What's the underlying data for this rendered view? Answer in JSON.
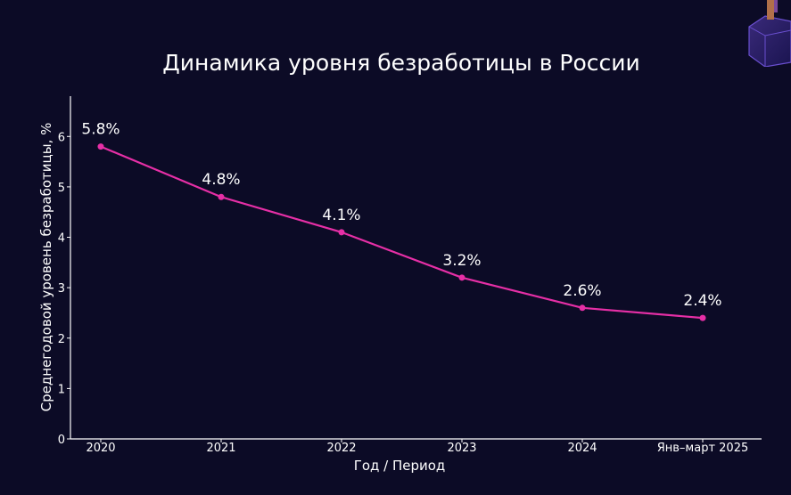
{
  "chart_data": {
    "type": "line",
    "title": "Динамика уровня безработицы в России",
    "xlabel": "Год / Период",
    "ylabel": "Среднегодовой уровень безработицы, %",
    "categories": [
      "2020",
      "2021",
      "2022",
      "2023",
      "2024",
      "Янв–март 2025"
    ],
    "series": [
      {
        "values": [
          5.8,
          4.8,
          4.1,
          3.2,
          2.6,
          2.4
        ]
      }
    ],
    "data_labels": [
      "5.8%",
      "4.8%",
      "4.1%",
      "3.2%",
      "2.6%",
      "2.4%"
    ],
    "yticks": [
      "0",
      "1",
      "2",
      "3",
      "4",
      "5",
      "6"
    ],
    "ylim": [
      0,
      6.8
    ],
    "grid": false,
    "line_color": "#e62fa6",
    "axis_color": "#ffffff",
    "text_color": "#ffffff",
    "background_color": "#0c0b26"
  }
}
